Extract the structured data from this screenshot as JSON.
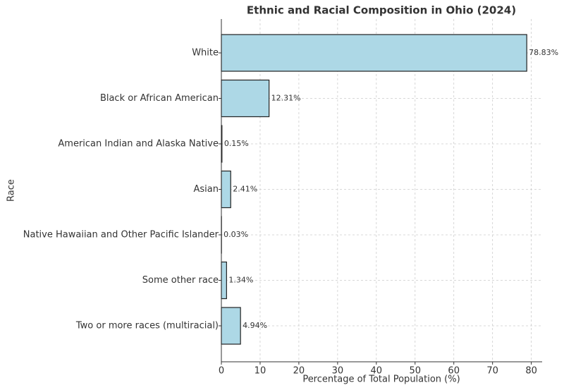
{
  "chart_data": {
    "type": "barh",
    "title": "Ethnic and Racial Composition in Ohio (2024)",
    "x_label": "Percentage of Total Population (%)",
    "y_label": "Race",
    "categories": [
      "White",
      "Black or African American",
      "American Indian and Alaska Native",
      "Asian",
      "Native Hawaiian and Other Pacific Islander",
      "Some other race",
      "Two or more races (multiracial)"
    ],
    "values": [
      78.83,
      12.31,
      0.15,
      2.41,
      0.03,
      1.34,
      4.94
    ],
    "value_labels": [
      "78.83%",
      "12.31%",
      "0.15%",
      "2.41%",
      "0.03%",
      "1.34%",
      "4.94%"
    ],
    "color": "#add8e6",
    "xlim": [
      0,
      82.8
    ],
    "xticks": [
      0,
      10,
      20,
      30,
      40,
      50,
      60,
      70,
      80
    ],
    "grid": true
  }
}
